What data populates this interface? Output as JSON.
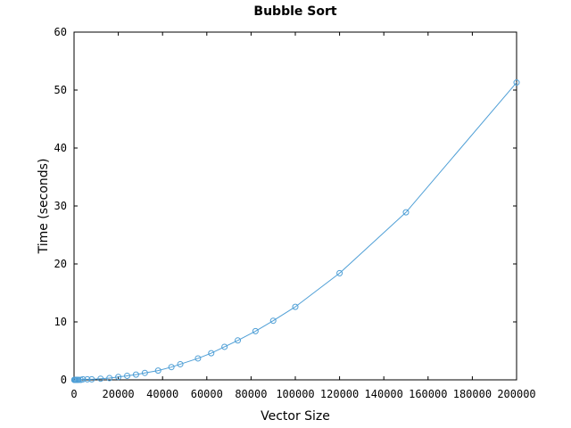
{
  "chart_data": {
    "type": "line",
    "title": "Bubble Sort",
    "xlabel": "Vector Size",
    "ylabel": "Time (seconds)",
    "xlim": [
      0,
      200000
    ],
    "ylim": [
      0,
      60
    ],
    "x_ticks": [
      0,
      20000,
      40000,
      60000,
      80000,
      100000,
      120000,
      140000,
      160000,
      180000,
      200000
    ],
    "y_ticks": [
      0,
      10,
      20,
      30,
      40,
      50,
      60
    ],
    "grid": false,
    "legend": "none",
    "marker": "circle-open",
    "colors": {
      "series": "#4f9fd6",
      "frame": "#000000",
      "background": "#ffffff"
    },
    "series": [
      {
        "x": [
          100,
          200,
          400,
          600,
          800,
          1000,
          1500,
          2000,
          3000,
          4000,
          6000,
          8000,
          12000,
          16000,
          20000,
          24000,
          28000,
          32000,
          38000,
          44000,
          48000,
          56000,
          62000,
          68000,
          74000,
          82000,
          90000,
          100000,
          120000,
          150000,
          200000
        ],
        "y": [
          0.0,
          0.0,
          0.0,
          0.0,
          0.0,
          0.0,
          0.0,
          0.0,
          0.0,
          0.1,
          0.1,
          0.1,
          0.2,
          0.3,
          0.5,
          0.7,
          0.9,
          1.2,
          1.6,
          2.2,
          2.7,
          3.7,
          4.6,
          5.7,
          6.8,
          8.4,
          10.2,
          12.6,
          18.4,
          28.9,
          51.3
        ]
      }
    ]
  }
}
